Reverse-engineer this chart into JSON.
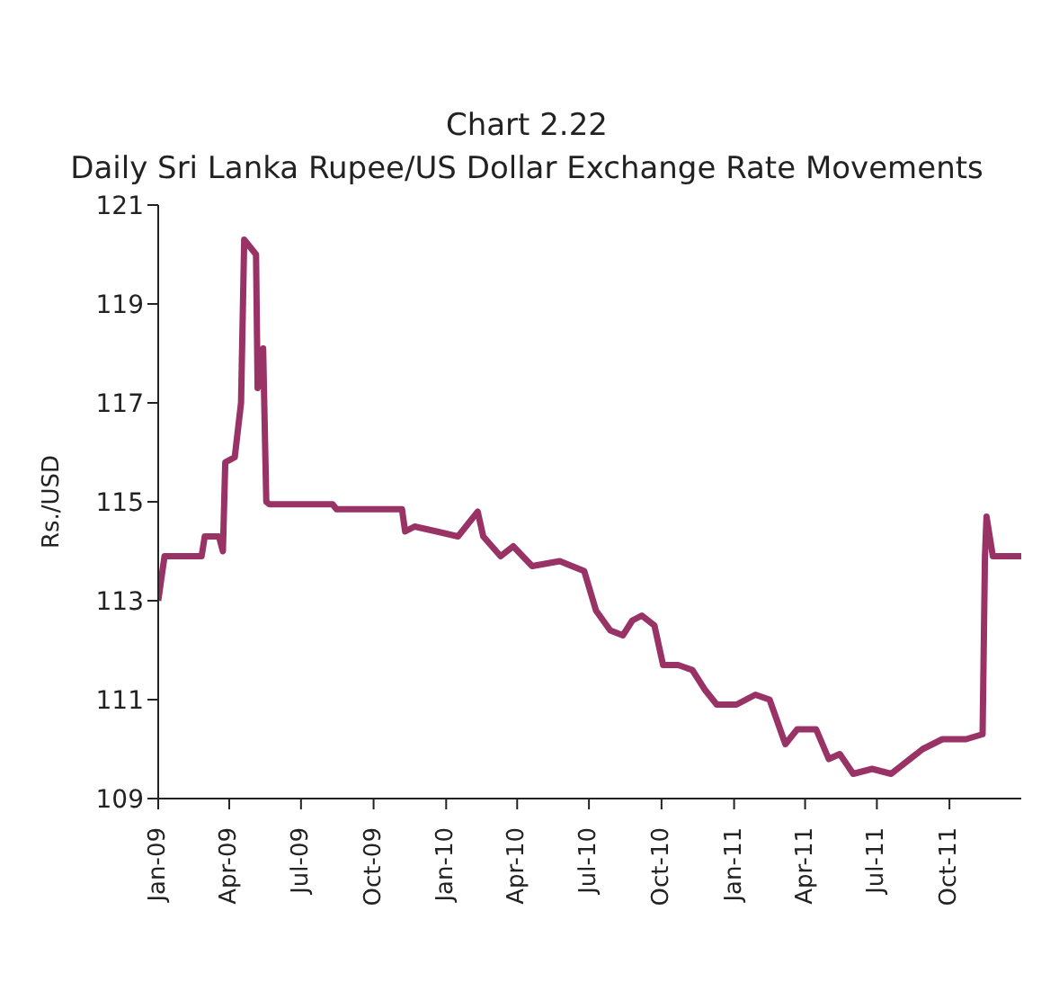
{
  "chart_data": {
    "type": "line",
    "title": "Chart 2.22",
    "subtitle": "Daily Sri Lanka Rupee/US Dollar Exchange Rate Movements",
    "ylabel": "Rs./USD",
    "xlim": [
      "2009-01-01",
      "2011-12-31"
    ],
    "xticks": [
      {
        "value": "2009-01-01",
        "label": "Jan-09"
      },
      {
        "value": "2009-04-01",
        "label": "Apr-09"
      },
      {
        "value": "2009-07-01",
        "label": "Jul-09"
      },
      {
        "value": "2009-10-01",
        "label": "Oct-09"
      },
      {
        "value": "2010-01-01",
        "label": "Jan-10"
      },
      {
        "value": "2010-04-01",
        "label": "Apr-10"
      },
      {
        "value": "2010-07-01",
        "label": "Jul-10"
      },
      {
        "value": "2010-10-01",
        "label": "Oct-10"
      },
      {
        "value": "2011-01-01",
        "label": "Jan-11"
      },
      {
        "value": "2011-04-01",
        "label": "Apr-11"
      },
      {
        "value": "2011-07-01",
        "label": "Jul-11"
      },
      {
        "value": "2011-10-01",
        "label": "Oct-11"
      }
    ],
    "ylim": [
      109,
      121
    ],
    "yticks": [
      109,
      111,
      113,
      115,
      117,
      119,
      121
    ],
    "marker": "none",
    "line_style": "solid",
    "x": [
      "2009-01-01",
      "2009-01-09",
      "2009-02-25",
      "2009-03-01",
      "2009-03-19",
      "2009-03-24",
      "2009-03-27",
      "2009-04-08",
      "2009-04-16",
      "2009-04-20",
      "2009-05-05",
      "2009-05-07",
      "2009-05-14",
      "2009-05-18",
      "2009-05-22",
      "2009-08-10",
      "2009-08-15",
      "2009-11-06",
      "2009-11-10",
      "2009-11-22",
      "2009-12-20",
      "2010-01-16",
      "2010-02-10",
      "2010-02-17",
      "2010-03-11",
      "2010-03-27",
      "2010-04-20",
      "2010-05-25",
      "2010-06-25",
      "2010-07-10",
      "2010-07-28",
      "2010-08-13",
      "2010-08-25",
      "2010-09-06",
      "2010-09-22",
      "2010-10-03",
      "2010-10-22",
      "2010-11-09",
      "2010-11-25",
      "2010-12-10",
      "2011-01-04",
      "2011-01-28",
      "2011-02-15",
      "2011-03-07",
      "2011-03-22",
      "2011-04-15",
      "2011-05-01",
      "2011-05-15",
      "2011-06-01",
      "2011-06-25",
      "2011-07-19",
      "2011-08-04",
      "2011-08-28",
      "2011-09-22",
      "2011-10-22",
      "2011-11-12",
      "2011-11-15",
      "2011-11-17",
      "2011-11-25",
      "2011-12-31"
    ],
    "series": [
      {
        "color": "#993366",
        "values": [
          113.0,
          113.9,
          113.9,
          114.3,
          114.3,
          114.0,
          115.8,
          115.9,
          117.0,
          120.3,
          120.0,
          117.3,
          118.1,
          115.0,
          114.95,
          114.95,
          114.85,
          114.85,
          114.4,
          114.5,
          114.4,
          114.3,
          114.8,
          114.3,
          113.9,
          114.1,
          113.7,
          113.8,
          113.6,
          112.8,
          112.4,
          112.3,
          112.6,
          112.7,
          112.5,
          111.7,
          111.7,
          111.6,
          111.2,
          110.9,
          110.9,
          111.1,
          111.0,
          110.1,
          110.4,
          110.4,
          109.8,
          109.9,
          109.5,
          109.6,
          109.5,
          109.7,
          110.0,
          110.2,
          110.2,
          110.3,
          113.9,
          114.7,
          113.9,
          113.9
        ]
      }
    ]
  }
}
